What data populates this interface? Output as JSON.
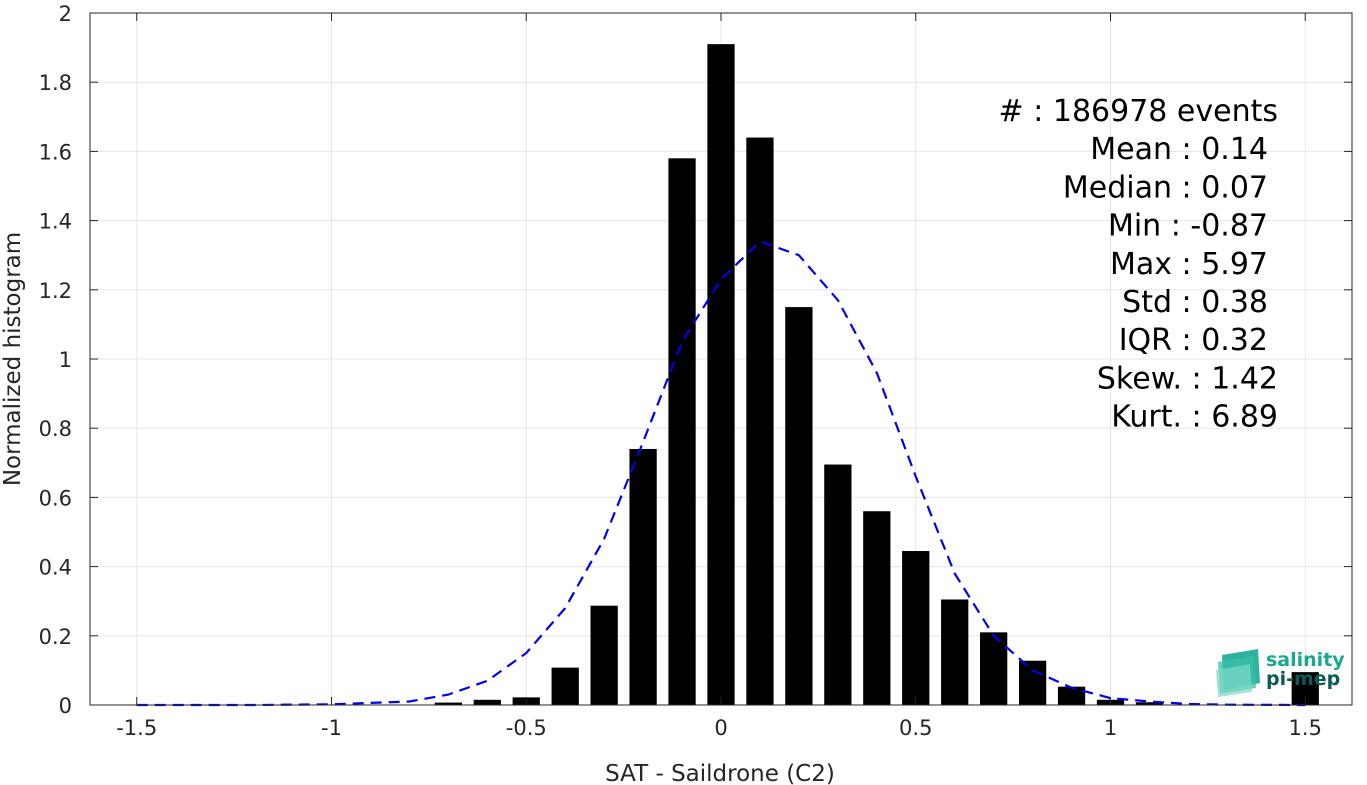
{
  "chart_data": {
    "type": "bar",
    "xlabel": "SAT - Saildrone (C2)",
    "ylabel": "Normalized histogram",
    "xlim": [
      -1.62,
      1.62
    ],
    "ylim": [
      0,
      2
    ],
    "grid": true,
    "x_ticks": [
      -1.5,
      -1,
      -0.5,
      0,
      0.5,
      1,
      1.5
    ],
    "x_tick_labels": [
      "-1.5",
      "-1",
      "-0.5",
      "0",
      "0.5",
      "1",
      "1.5"
    ],
    "y_ticks": [
      0,
      0.2,
      0.4,
      0.6,
      0.8,
      1,
      1.2,
      1.4,
      1.6,
      1.8,
      2
    ],
    "y_tick_labels": [
      "0",
      "0.2",
      "0.4",
      "0.6",
      "0.8",
      "1",
      "1.2",
      "1.4",
      "1.6",
      "1.8",
      "2"
    ],
    "bar_width": 0.07,
    "bars": {
      "x": [
        -0.7,
        -0.6,
        -0.5,
        -0.4,
        -0.3,
        -0.2,
        -0.1,
        0,
        0.1,
        0.2,
        0.3,
        0.4,
        0.5,
        0.6,
        0.7,
        0.8,
        0.9,
        1.0,
        1.1,
        1.5
      ],
      "values": [
        0.007,
        0.015,
        0.022,
        0.108,
        0.287,
        0.74,
        1.58,
        1.91,
        1.64,
        1.15,
        0.695,
        0.56,
        0.445,
        0.305,
        0.21,
        0.128,
        0.053,
        0.015,
        0.008,
        0.095
      ],
      "color": "#000000"
    },
    "fit_line": {
      "style": "dashed",
      "color": "#0000ee",
      "x": [
        -1.5,
        -1.2,
        -1.0,
        -0.8,
        -0.7,
        -0.6,
        -0.5,
        -0.4,
        -0.3,
        -0.2,
        -0.1,
        0,
        0.1,
        0.2,
        0.3,
        0.4,
        0.5,
        0.6,
        0.7,
        0.8,
        0.9,
        1.0,
        1.1,
        1.2,
        1.3,
        1.5
      ],
      "y": [
        0.0,
        0.0,
        0.002,
        0.01,
        0.03,
        0.07,
        0.15,
        0.28,
        0.48,
        0.76,
        1.05,
        1.23,
        1.34,
        1.3,
        1.17,
        0.96,
        0.66,
        0.38,
        0.2,
        0.1,
        0.05,
        0.02,
        0.01,
        0.003,
        0.001,
        0.0
      ]
    }
  },
  "stats": [
    {
      "text": "#  : 186978 events"
    },
    {
      "text": "Mean : 0.14"
    },
    {
      "text": "Median : 0.07"
    },
    {
      "text": "Min : -0.87"
    },
    {
      "text": "Max : 5.97"
    },
    {
      "text": "Std : 0.38"
    },
    {
      "text": "IQR : 0.32"
    },
    {
      "text": "Skew. : 1.42"
    },
    {
      "text": "Kurt. : 6.89"
    }
  ],
  "logo": {
    "line1": "salinity",
    "line2": "pi-mep",
    "color_primary": "#1aa890",
    "color_secondary": "#0d5a57"
  },
  "colors": {
    "grid": "#e6e6e6",
    "axis": "#262626"
  }
}
